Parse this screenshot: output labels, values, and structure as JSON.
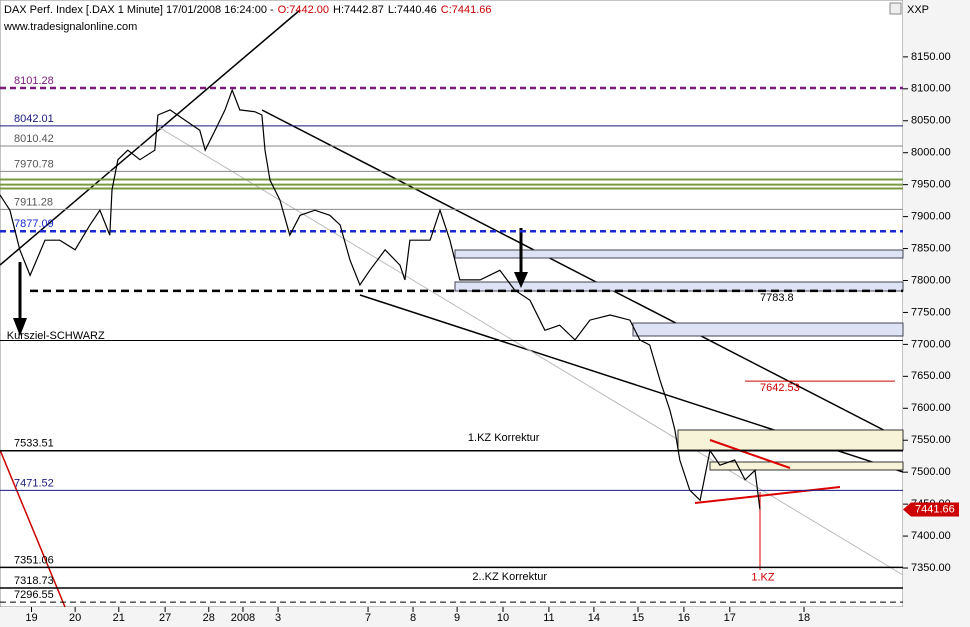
{
  "chart_data": {
    "type": "line",
    "title": "DAX Perf. Index [.DAX  1 Minute] 17/01/2008 16:24:00 -",
    "ohlc": [
      {
        "label": "O:7442.00",
        "color": "#cc0000"
      },
      {
        "label": "H:7442.87",
        "color": "#000000"
      },
      {
        "label": "L:7440.46",
        "color": "#000000"
      },
      {
        "label": "C:7441.66",
        "color": "#cc0000"
      }
    ],
    "subtitle": "www.tradesignalonline.com",
    "axis_caption": "XXP",
    "xlim": [
      0,
      20.07
    ],
    "ylim": [
      7289,
      8239
    ],
    "xticks": [
      {
        "value": 0.7,
        "label": "19"
      },
      {
        "value": 1.67,
        "label": "20"
      },
      {
        "value": 2.64,
        "label": "21"
      },
      {
        "value": 3.67,
        "label": "27"
      },
      {
        "value": 4.64,
        "label": "28"
      },
      {
        "value": 5.4,
        "label": "2008"
      },
      {
        "value": 6.18,
        "label": "3"
      },
      {
        "value": 8.18,
        "label": "7"
      },
      {
        "value": 9.18,
        "label": "8"
      },
      {
        "value": 10.16,
        "label": "9"
      },
      {
        "value": 11.18,
        "label": "10"
      },
      {
        "value": 12.2,
        "label": "11"
      },
      {
        "value": 13.2,
        "label": "14"
      },
      {
        "value": 14.18,
        "label": "15"
      },
      {
        "value": 15.2,
        "label": "16"
      },
      {
        "value": 16.22,
        "label": "17"
      },
      {
        "value": 17.87,
        "label": "18"
      }
    ],
    "yticks": [
      {
        "value": 7350,
        "label": "7350.00"
      },
      {
        "value": 7400,
        "label": "7400.00"
      },
      {
        "value": 7450,
        "label": "7450.00"
      },
      {
        "value": 7500,
        "label": "7500.00"
      },
      {
        "value": 7550,
        "label": "7550.00"
      },
      {
        "value": 7600,
        "label": "7600.00"
      },
      {
        "value": 7650,
        "label": "7650.00"
      },
      {
        "value": 7700,
        "label": "7700.00"
      },
      {
        "value": 7750,
        "label": "7750.00"
      },
      {
        "value": 7800,
        "label": "7800.00"
      },
      {
        "value": 7850,
        "label": "7850.00"
      },
      {
        "value": 7900,
        "label": "7900.00"
      },
      {
        "value": 7950,
        "label": "7950.00"
      },
      {
        "value": 8000,
        "label": "8000.00"
      },
      {
        "value": 8050,
        "label": "8050.00"
      },
      {
        "value": 8100,
        "label": "8100.00"
      },
      {
        "value": 8150,
        "label": "8150.00"
      }
    ],
    "series": [
      {
        "name": "DAX",
        "color": "#000000",
        "x": [
          0,
          0.22,
          0.44,
          0.67,
          1,
          1.33,
          1.67,
          2,
          2.22,
          2.44,
          2.49,
          2.62,
          2.84,
          3.11,
          3.44,
          3.51,
          3.78,
          4.11,
          4.44,
          4.56,
          4.78,
          5,
          5.16,
          5.33,
          5.67,
          5.82,
          5.89,
          6,
          6.22,
          6.44,
          6.67,
          7,
          7.33,
          7.56,
          7.78,
          8,
          8.22,
          8.56,
          8.89,
          9,
          9.11,
          9.56,
          9.78,
          10,
          10.22,
          10.67,
          11.11,
          11.44,
          11.78,
          12.11,
          12.44,
          12.78,
          13.11,
          13.56,
          14,
          14.22,
          14.44,
          14.67,
          14.89,
          15,
          15.11,
          15.33,
          15.56,
          15.78,
          16,
          16.33,
          16.56,
          16.78,
          16.89
        ],
        "values": [
          7934,
          7910,
          7848,
          7808,
          7863,
          7863,
          7848,
          7887,
          7910,
          7871,
          7942,
          7989,
          8004,
          7989,
          8004,
          8059,
          8067,
          8051,
          8035,
          8004,
          8035,
          8067,
          8098,
          8067,
          8064,
          8059,
          8004,
          7957,
          7926,
          7871,
          7902,
          7910,
          7902,
          7887,
          7832,
          7793,
          7816,
          7848,
          7824,
          7801,
          7863,
          7863,
          7910,
          7863,
          7801,
          7801,
          7816,
          7785,
          7769,
          7722,
          7730,
          7707,
          7738,
          7746,
          7738,
          7707,
          7699,
          7644,
          7597,
          7566,
          7519,
          7472,
          7456,
          7534,
          7511,
          7519,
          7488,
          7503,
          7442
        ]
      }
    ],
    "last_price": {
      "value": 7441.66,
      "label": "7441.66",
      "color": "#cc0000"
    },
    "levels": [
      {
        "value": 8101.28,
        "label": "8101.28",
        "color": "#7a1a7a",
        "dash": true,
        "width": 2.5
      },
      {
        "value": 8042.01,
        "label": "8042.01",
        "color": "#1a1a80",
        "dash": false,
        "width": 1
      },
      {
        "value": 8010.42,
        "label": "8010.42",
        "color": "#888888",
        "dash": false,
        "width": 1
      },
      {
        "value": 7970.78,
        "label": "7970.78",
        "color": "#888888",
        "dash": false,
        "width": 1
      },
      {
        "value": 7958,
        "color": "#7a9a40",
        "dash": false,
        "width": 2
      },
      {
        "value": 7950,
        "color": "#7a9a40",
        "dash": false,
        "width": 2
      },
      {
        "value": 7944,
        "color": "#7a9a40",
        "dash": false,
        "width": 2
      },
      {
        "value": 7911.28,
        "label": "7911.28",
        "color": "#888888",
        "dash": false,
        "width": 1
      },
      {
        "value": 7877.09,
        "label": "7877.09",
        "color": "#1a2ad0",
        "dash": true,
        "width": 2.5
      },
      {
        "value": 7706,
        "color": "#000000",
        "dash": false,
        "width": 1
      },
      {
        "value": 7533.51,
        "label": "7533.51",
        "color": "#000000",
        "dash": false,
        "width": 1.5
      },
      {
        "value": 7471.52,
        "label": "7471.52",
        "color": "#1a1a80",
        "dash": false,
        "width": 1
      },
      {
        "value": 7351.06,
        "label": "7351.06",
        "color": "#000000",
        "dash": false,
        "width": 1.5
      },
      {
        "value": 7318.73,
        "label": "7318.73",
        "color": "#000000",
        "dash": false,
        "width": 1.5
      },
      {
        "value": 7296.55,
        "label": "7296.55",
        "color": "#000000",
        "dash": true,
        "width": 1
      }
    ],
    "right_levels": [
      {
        "value": 7783.8,
        "label": "7783.8",
        "color": "#000000"
      },
      {
        "value": 7642.53,
        "label": "7642.53",
        "color": "#cc0000"
      }
    ],
    "annotations": [
      {
        "text": "Kursziel-SCHWARZ",
        "x": 0.15,
        "y": 7713
      },
      {
        "text": "1.KZ Korrektur",
        "x": 10.4,
        "y": 7553
      },
      {
        "text": "2..KZ Korrektur",
        "x": 10.5,
        "y": 7336
      },
      {
        "text": "1.KZ",
        "x": 16.7,
        "y": 7335,
        "color": "#cc0000"
      }
    ]
  }
}
